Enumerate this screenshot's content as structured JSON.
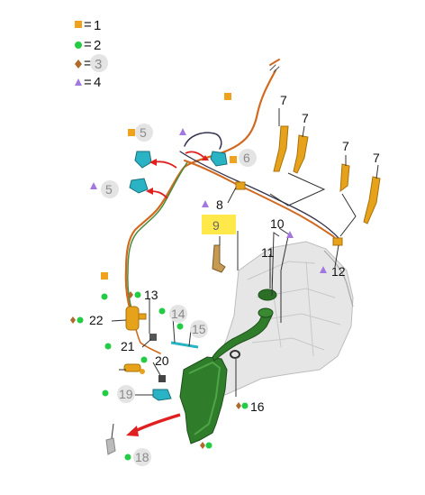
{
  "legend": {
    "eq": "=",
    "items": [
      {
        "number": "1",
        "symbol": "square",
        "color": "#f0a21c"
      },
      {
        "number": "2",
        "symbol": "circle",
        "color": "#22cc44"
      },
      {
        "number": "3",
        "symbol": "diamond",
        "color": "#b06a2a"
      },
      {
        "number": "4",
        "symbol": "triangle",
        "color": "#a277e0"
      }
    ]
  },
  "callouts": {
    "c5a": "5",
    "c5b": "5",
    "c6": "6",
    "c7a": "7",
    "c7b": "7",
    "c7c": "7",
    "c7d": "7",
    "c8": "8",
    "c9": "9",
    "c10": "10",
    "c11": "11",
    "c12": "12",
    "c13": "13",
    "c14": "14",
    "c15": "15",
    "c16": "16",
    "c18": "18",
    "c19": "19",
    "c20": "20",
    "c21": "21",
    "c22": "22"
  },
  "colors": {
    "wire_orange": "#d2691e",
    "wire_green": "#4b8b3b",
    "tank_green": "#2f7d2a",
    "leader": "#333333",
    "arrow_red": "#e02020",
    "highlight_yellow": "#ffe84a",
    "body_grey": "#cfcfcf",
    "nozzle_orange": "#e6a21a",
    "pump_cyan": "#2ab3c4"
  }
}
